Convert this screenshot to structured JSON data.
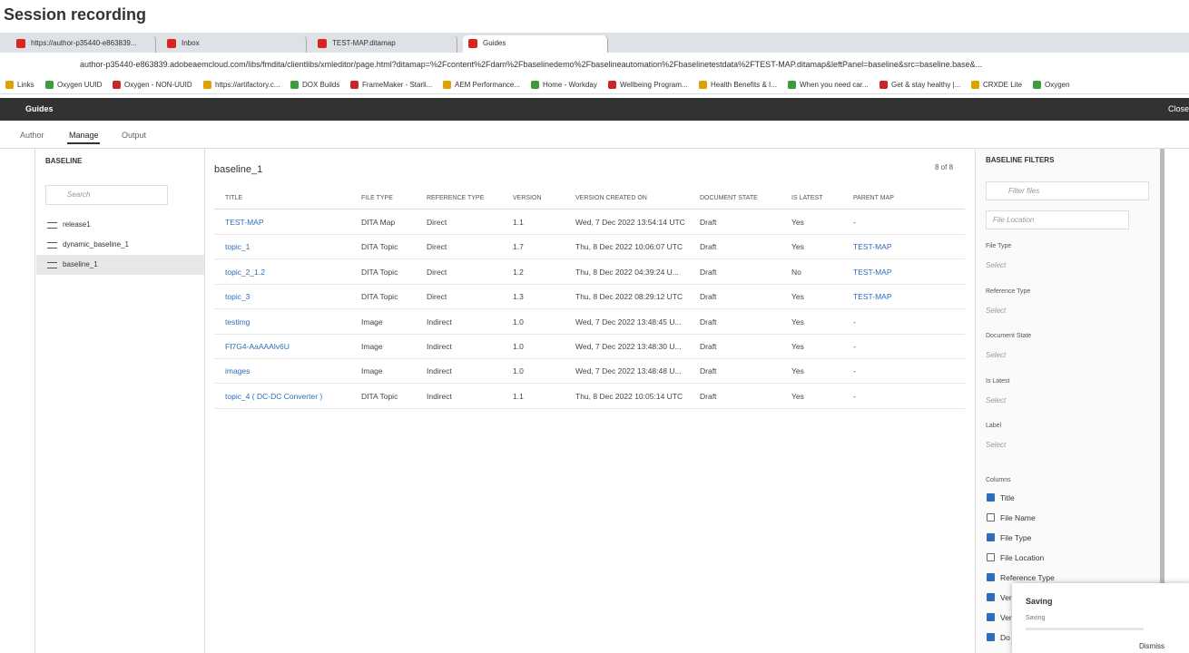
{
  "header": {
    "title": "Session recording"
  },
  "browser": {
    "tabs": [
      "https://author-p35440-e863839...",
      "Inbox",
      "TEST-MAP.ditamap",
      "Guides"
    ],
    "url": "author-p35440-e863839.adobeaemcloud.com/libs/fmdita/clientlibs/xmleditor/page.html?ditamap=%2Fcontent%2Fdam%2Fbaselinedemo%2Fbaselineautomation%2Fbaselinetestdata%2FTEST-MAP.ditamap&leftPanel=baseline&src=baseline.base&...",
    "bookmarks": [
      "Links",
      "Oxygen UUID",
      "Oxygen - NON-UUID",
      "https://artifactory.c...",
      "DOX Builds",
      "FrameMaker - Starli...",
      "AEM Performance...",
      "Home - Workday",
      "Wellbeing Program...",
      "Health Benefits & I...",
      "When you need car...",
      "Get & stay healthy |...",
      "CRXDE Lite",
      "Oxygen"
    ]
  },
  "app": {
    "name": "Guides",
    "close": "Close",
    "nav": [
      "Author",
      "Manage",
      "Output"
    ]
  },
  "sidebar": {
    "title": "BASELINE",
    "search": "Search",
    "items": [
      "release1",
      "dynamic_baseline_1",
      "baseline_1"
    ]
  },
  "table": {
    "title": "baseline_1",
    "count": "8 of 8",
    "columns": [
      "TITLE",
      "FILE TYPE",
      "REFERENCE TYPE",
      "VERSION",
      "VERSION CREATED ON",
      "DOCUMENT STATE",
      "IS LATEST",
      "PARENT MAP"
    ],
    "rows": [
      [
        "TEST-MAP",
        "DITA Map",
        "Direct",
        "1.1",
        "Wed, 7 Dec 2022 13:54:14 UTC",
        "Draft",
        "Yes",
        "-"
      ],
      [
        "topic_1",
        "DITA Topic",
        "Direct",
        "1.7",
        "Thu, 8 Dec 2022 10:06:07 UTC",
        "Draft",
        "Yes",
        "TEST-MAP"
      ],
      [
        "topic_2_1.2",
        "DITA Topic",
        "Direct",
        "1.2",
        "Thu, 8 Dec 2022 04:39:24 U...",
        "Draft",
        "No",
        "TEST-MAP"
      ],
      [
        "topic_3",
        "DITA Topic",
        "Direct",
        "1.3",
        "Thu, 8 Dec 2022 08:29:12 UTC",
        "Draft",
        "Yes",
        "TEST-MAP"
      ],
      [
        "testimg",
        "Image",
        "Indirect",
        "1.0",
        "Wed, 7 Dec 2022 13:48:45 U...",
        "Draft",
        "Yes",
        "-"
      ],
      [
        "Ff7G4-AaAAAlv6U",
        "Image",
        "Indirect",
        "1.0",
        "Wed, 7 Dec 2022 13:48:30 U...",
        "Draft",
        "Yes",
        "-"
      ],
      [
        "images",
        "Image",
        "Indirect",
        "1.0",
        "Wed, 7 Dec 2022 13:48:48 U...",
        "Draft",
        "Yes",
        "-"
      ],
      [
        "topic_4 ( DC-DC Converter )",
        "DITA Topic",
        "Indirect",
        "1.1",
        "Thu, 8 Dec 2022 10:05:14 UTC",
        "Draft",
        "Yes",
        "-"
      ]
    ]
  },
  "filters": {
    "title": "BASELINE FILTERS",
    "search": "Filter files",
    "location": "File Location",
    "fields": [
      {
        "label": "File Type",
        "value": "Select"
      },
      {
        "label": "Reference Type",
        "value": "Select"
      },
      {
        "label": "Document State",
        "value": "Select"
      },
      {
        "label": "Is Latest",
        "value": "Select"
      },
      {
        "label": "Label",
        "value": "Select"
      }
    ],
    "columns_title": "Columns",
    "columns": [
      {
        "label": "Title",
        "checked": true
      },
      {
        "label": "File Name",
        "checked": false
      },
      {
        "label": "File Type",
        "checked": true
      },
      {
        "label": "File Location",
        "checked": false
      },
      {
        "label": "Reference Type",
        "checked": true
      },
      {
        "label": "Ver",
        "checked": true
      },
      {
        "label": "Ver",
        "checked": true
      },
      {
        "label": "Do",
        "checked": true
      }
    ]
  },
  "toast": {
    "title": "Saving",
    "message": "Saving",
    "dismiss": "Dismiss"
  }
}
